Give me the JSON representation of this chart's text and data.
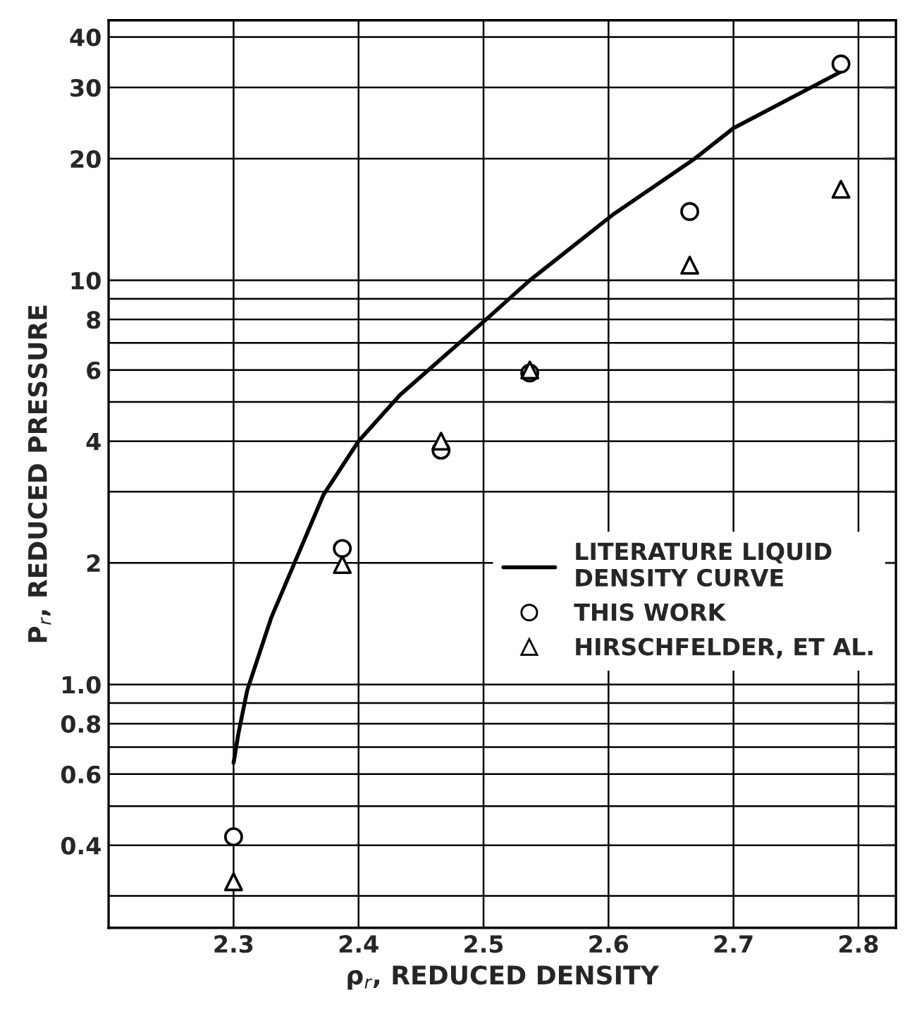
{
  "chart_data": {
    "type": "scatter",
    "xlabel": "ρ$_{r}$, REDUCED DENSITY",
    "ylabel": "P$_{r}$, REDUCED PRESSURE",
    "log": "y",
    "grid": true,
    "legend": "right",
    "xlim": [
      2.2,
      2.83
    ],
    "xticks": [
      2.3,
      2.4,
      2.5,
      2.6,
      2.7,
      2.8
    ],
    "ylim": [
      0.25,
      44
    ],
    "yticks": [
      {
        "value": 0.3,
        "label": null
      },
      0.4,
      {
        "value": 0.5,
        "label": null
      },
      0.6,
      {
        "value": 0.7,
        "label": null
      },
      0.8,
      {
        "value": 0.9,
        "label": null
      },
      {
        "value": 1.0,
        "label": "1.0"
      },
      2,
      {
        "value": 3,
        "label": null
      },
      4,
      {
        "value": 5,
        "label": null
      },
      6,
      {
        "value": 7,
        "label": null
      },
      8,
      {
        "value": 9,
        "label": null
      },
      10,
      20,
      30,
      40
    ],
    "series": [
      {
        "name": "LITERATURE LIQUID\nDENSITY CURVE",
        "type": "line",
        "marker": "none",
        "line_style": "solid",
        "color": "#000000",
        "x": [
          2.3,
          2.304,
          2.311,
          2.33,
          2.372,
          2.4,
          2.433,
          2.504,
          2.537,
          2.603,
          2.669,
          2.7,
          2.785
        ],
        "values": [
          0.64,
          0.76,
          0.97,
          1.46,
          2.95,
          4.0,
          5.2,
          8.1,
          10,
          14.5,
          20,
          23.8,
          32.7
        ]
      },
      {
        "name": "THIS WORK",
        "marker": "circle",
        "color": "#000000",
        "x": [
          2.3,
          2.387,
          2.466,
          2.537,
          2.665,
          2.786
        ],
        "values": [
          0.42,
          2.17,
          3.8,
          5.9,
          14.8,
          34.3
        ]
      },
      {
        "name": "HIRSCHFELDER, ET AL.",
        "marker": "triangle",
        "color": "#000000",
        "x": [
          2.3,
          2.387,
          2.466,
          2.537,
          2.665,
          2.786
        ],
        "values": [
          0.325,
          1.98,
          4.0,
          6.0,
          10.9,
          16.8
        ]
      }
    ]
  }
}
